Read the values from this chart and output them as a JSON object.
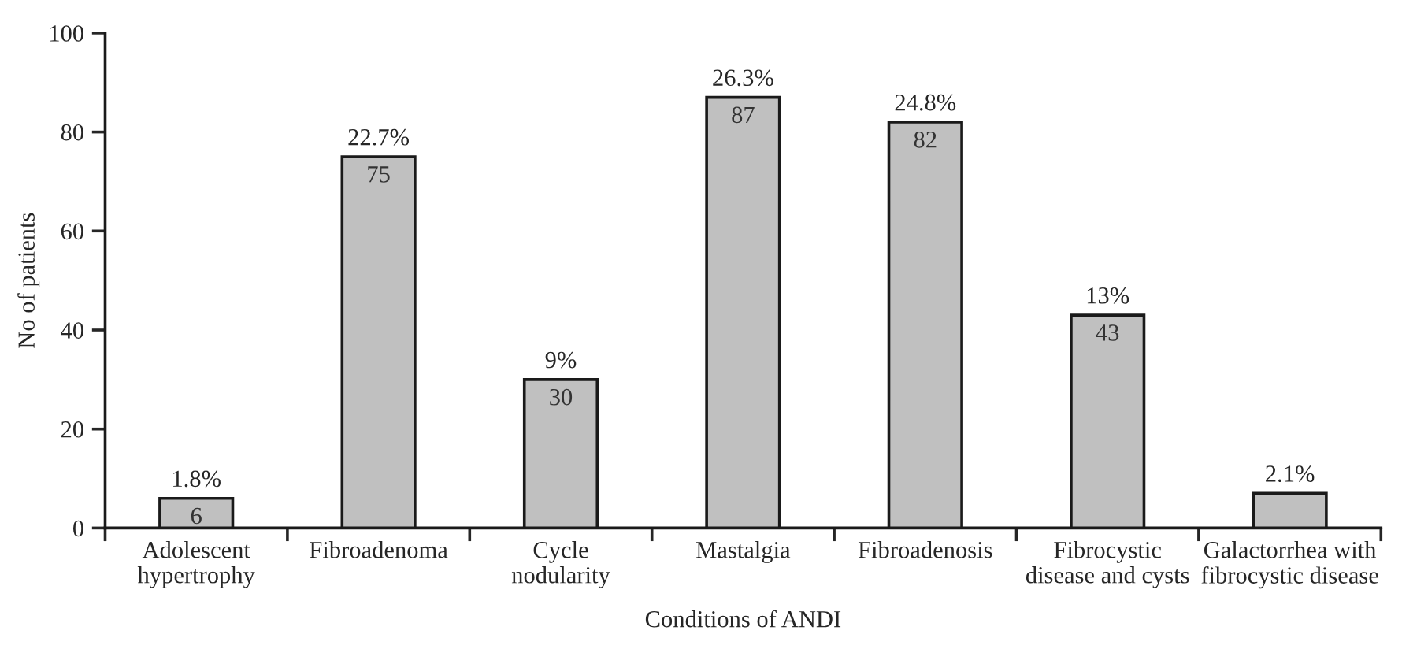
{
  "chart_data": {
    "type": "bar",
    "xlabel": "Conditions of ANDI",
    "ylabel": "No of patients",
    "categories": [
      "Adolescent\nhypertrophy",
      "Fibroadenoma",
      "Cycle\nnodularity",
      "Mastalgia",
      "Fibroadenosis",
      "Fibrocystic\ndisease and cysts",
      "Galactorrhea with\nfibrocystic disease"
    ],
    "values": [
      6,
      75,
      30,
      87,
      82,
      43,
      7
    ],
    "value_labels": [
      "6",
      "75",
      "30",
      "87",
      "82",
      "43",
      null
    ],
    "color": "#c0c0c0",
    "annotations": [
      {
        "text": "1.8%",
        "x": "Adolescent\nhypertrophy",
        "y": 6
      },
      {
        "text": "22.7%",
        "x": "Fibroadenoma",
        "y": 75
      },
      {
        "text": "9%",
        "x": "Cycle\nnodularity",
        "y": 30
      },
      {
        "text": "26.3%",
        "x": "Mastalgia",
        "y": 87
      },
      {
        "text": "24.8%",
        "x": "Fibroadenosis",
        "y": 82
      },
      {
        "text": "13%",
        "x": "Fibrocystic\ndisease and cysts",
        "y": 43
      },
      {
        "text": "2.1%",
        "x": "Galactorrhea with\nfibrocystic disease",
        "y": 7
      }
    ],
    "ylim": [
      0,
      100
    ],
    "yticks": [
      0,
      20,
      40,
      60,
      80,
      100
    ],
    "grid": false,
    "legend": false
  }
}
